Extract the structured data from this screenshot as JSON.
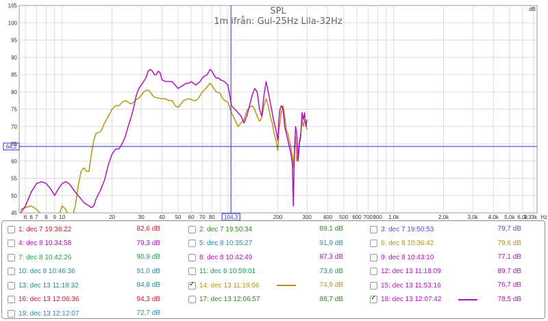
{
  "chart_data": {
    "type": "line",
    "title": "SPL",
    "subtitle": "1m ifrån: Gul-25Hz Lila-32Hz",
    "ylabel": "dB",
    "xlabel": "",
    "x_unit": "Hz",
    "xscale": "log",
    "xlim": [
      5.5,
      7330
    ],
    "ylim": [
      45,
      105
    ],
    "grid": true,
    "y_ticks": [
      45,
      50,
      55,
      60,
      65,
      70,
      75,
      80,
      85,
      90,
      95,
      100,
      105
    ],
    "x_ticks": [
      {
        "v": 6,
        "label": "6"
      },
      {
        "v": 6.5,
        "label": "6"
      },
      {
        "v": 7,
        "label": "7"
      },
      {
        "v": 8,
        "label": "8"
      },
      {
        "v": 9,
        "label": "9"
      },
      {
        "v": 10,
        "label": "10"
      },
      {
        "v": 20,
        "label": "20"
      },
      {
        "v": 30,
        "label": "30"
      },
      {
        "v": 40,
        "label": "40"
      },
      {
        "v": 50,
        "label": "50"
      },
      {
        "v": 60,
        "label": "60"
      },
      {
        "v": 70,
        "label": "70"
      },
      {
        "v": 80,
        "label": "80"
      },
      {
        "v": 200,
        "label": "200"
      },
      {
        "v": 300,
        "label": "300"
      },
      {
        "v": 400,
        "label": "400"
      },
      {
        "v": 500,
        "label": "500"
      },
      {
        "v": 600,
        "label": "600"
      },
      {
        "v": 700,
        "label": "700"
      },
      {
        "v": 800,
        "label": "800"
      },
      {
        "v": 1000,
        "label": "1,0k"
      },
      {
        "v": 2000,
        "label": "2,0k"
      },
      {
        "v": 3000,
        "label": "3,0k"
      },
      {
        "v": 4000,
        "label": "4,0k"
      },
      {
        "v": 5000,
        "label": "5,0k"
      },
      {
        "v": 6000,
        "label": "6,0k"
      },
      {
        "v": 7330,
        "label": "7,33k"
      }
    ],
    "cursor": {
      "x": 104.3,
      "x_label": "104,3",
      "y": 64.2,
      "y_label": "64,2"
    },
    "series": [
      {
        "name": "14: dec 13 11:19:06",
        "color": "#b8930f",
        "points": [
          [
            5.6,
            46
          ],
          [
            6,
            46.5
          ],
          [
            6.5,
            47
          ],
          [
            7,
            46
          ],
          [
            7.5,
            44.5
          ],
          [
            8,
            43
          ],
          [
            9,
            43
          ],
          [
            9.5,
            44
          ],
          [
            10,
            47
          ],
          [
            10.5,
            46
          ],
          [
            11,
            44
          ],
          [
            11.5,
            44
          ],
          [
            12,
            47
          ],
          [
            12.5,
            53
          ],
          [
            13,
            57
          ],
          [
            13.5,
            58
          ],
          [
            14,
            57
          ],
          [
            14.5,
            57
          ],
          [
            15,
            62
          ],
          [
            15.5,
            66
          ],
          [
            16,
            68
          ],
          [
            17,
            68.5
          ],
          [
            17.5,
            69.5
          ],
          [
            18,
            71
          ],
          [
            19,
            73
          ],
          [
            20,
            75
          ],
          [
            21,
            76
          ],
          [
            22,
            76
          ],
          [
            23,
            77
          ],
          [
            24,
            77.5
          ],
          [
            25,
            77
          ],
          [
            26,
            76.5
          ],
          [
            27,
            77
          ],
          [
            28,
            77.8
          ],
          [
            29,
            78.2
          ],
          [
            30,
            79
          ],
          [
            31,
            80
          ],
          [
            32,
            80.4
          ],
          [
            33,
            80.5
          ],
          [
            34,
            80
          ],
          [
            35,
            79
          ],
          [
            36,
            78.5
          ],
          [
            38,
            78.2
          ],
          [
            40,
            78
          ],
          [
            42,
            78
          ],
          [
            44,
            77.5
          ],
          [
            46,
            77.5
          ],
          [
            48,
            76
          ],
          [
            50,
            75.5
          ],
          [
            52,
            76.5
          ],
          [
            54,
            77.5
          ],
          [
            56,
            77.8
          ],
          [
            58,
            78
          ],
          [
            60,
            77.8
          ],
          [
            62,
            77.5
          ],
          [
            64,
            77.5
          ],
          [
            66,
            78
          ],
          [
            68,
            79
          ],
          [
            70,
            80
          ],
          [
            72,
            80.5
          ],
          [
            75,
            81.5
          ],
          [
            78,
            82.5
          ],
          [
            80,
            82
          ],
          [
            82,
            81
          ],
          [
            85,
            80
          ],
          [
            88,
            79.8
          ],
          [
            90,
            79.5
          ],
          [
            93,
            78
          ],
          [
            96,
            77.5
          ],
          [
            100,
            77
          ],
          [
            105,
            74
          ],
          [
            110,
            72
          ],
          [
            115,
            70
          ],
          [
            120,
            71
          ],
          [
            125,
            72
          ],
          [
            130,
            74.5
          ],
          [
            135,
            75.5
          ],
          [
            140,
            76
          ],
          [
            145,
            75
          ],
          [
            150,
            73
          ],
          [
            155,
            71.5
          ],
          [
            160,
            72.5
          ],
          [
            165,
            76
          ],
          [
            170,
            78
          ],
          [
            175,
            76
          ],
          [
            180,
            73
          ],
          [
            185,
            71
          ],
          [
            190,
            68
          ],
          [
            195,
            66
          ],
          [
            200,
            63
          ],
          [
            203,
            69
          ],
          [
            206,
            71
          ],
          [
            210,
            74
          ],
          [
            215,
            76
          ],
          [
            220,
            73
          ],
          [
            225,
            69
          ],
          [
            230,
            68
          ],
          [
            235,
            66
          ],
          [
            240,
            64
          ],
          [
            245,
            61
          ],
          [
            248,
            58
          ],
          [
            252,
            64
          ],
          [
            256,
            67
          ],
          [
            260,
            60
          ],
          [
            265,
            62
          ],
          [
            270,
            66
          ],
          [
            275,
            68
          ],
          [
            280,
            72
          ],
          [
            285,
            70
          ],
          [
            290,
            72
          ],
          [
            295,
            71
          ],
          [
            300,
            69
          ]
        ]
      },
      {
        "name": "18: dec 13 12:07:42",
        "color": "#b10fc0",
        "points": [
          [
            5.6,
            45
          ],
          [
            6,
            47
          ],
          [
            6.5,
            51
          ],
          [
            7,
            53.5
          ],
          [
            7.5,
            54
          ],
          [
            8,
            53.5
          ],
          [
            8.5,
            52
          ],
          [
            9,
            50
          ],
          [
            9.5,
            52
          ],
          [
            10,
            53.5
          ],
          [
            10.5,
            54
          ],
          [
            11,
            53.5
          ],
          [
            12,
            51
          ],
          [
            13,
            49
          ],
          [
            13.5,
            48
          ],
          [
            14,
            47.5
          ],
          [
            14.5,
            47
          ],
          [
            15,
            46.5
          ],
          [
            15.5,
            47
          ],
          [
            16,
            49
          ],
          [
            17,
            51.5
          ],
          [
            18,
            54.5
          ],
          [
            19,
            59
          ],
          [
            20,
            62
          ],
          [
            21,
            63.5
          ],
          [
            22,
            63.5
          ],
          [
            23,
            65
          ],
          [
            24,
            67
          ],
          [
            25,
            70
          ],
          [
            26,
            72.5
          ],
          [
            27,
            75.5
          ],
          [
            28,
            79
          ],
          [
            29,
            81
          ],
          [
            30,
            82
          ],
          [
            31,
            83
          ],
          [
            32,
            84
          ],
          [
            33,
            86
          ],
          [
            34,
            86.5
          ],
          [
            35,
            86
          ],
          [
            36,
            85
          ],
          [
            37,
            85
          ],
          [
            38,
            86
          ],
          [
            39,
            85.5
          ],
          [
            40,
            83.5
          ],
          [
            42,
            83
          ],
          [
            44,
            83
          ],
          [
            46,
            83
          ],
          [
            48,
            82
          ],
          [
            50,
            81
          ],
          [
            52,
            81.5
          ],
          [
            54,
            82
          ],
          [
            56,
            82.5
          ],
          [
            58,
            82.5
          ],
          [
            60,
            83
          ],
          [
            62,
            82.5
          ],
          [
            64,
            82
          ],
          [
            66,
            82.5
          ],
          [
            68,
            83
          ],
          [
            70,
            84
          ],
          [
            72,
            84.5
          ],
          [
            75,
            85
          ],
          [
            78,
            86.5
          ],
          [
            80,
            86
          ],
          [
            82,
            85
          ],
          [
            85,
            84
          ],
          [
            88,
            84
          ],
          [
            90,
            83.5
          ],
          [
            95,
            83
          ],
          [
            100,
            82
          ],
          [
            105,
            76
          ],
          [
            110,
            75
          ],
          [
            115,
            74
          ],
          [
            120,
            73
          ],
          [
            125,
            71
          ],
          [
            130,
            73
          ],
          [
            135,
            76
          ],
          [
            140,
            79
          ],
          [
            145,
            81
          ],
          [
            150,
            80
          ],
          [
            155,
            75
          ],
          [
            160,
            73
          ],
          [
            165,
            79
          ],
          [
            170,
            83
          ],
          [
            175,
            80
          ],
          [
            180,
            77
          ],
          [
            185,
            74
          ],
          [
            190,
            71
          ],
          [
            195,
            69
          ],
          [
            200,
            66
          ],
          [
            203,
            72
          ],
          [
            206,
            75
          ],
          [
            210,
            76
          ],
          [
            215,
            75
          ],
          [
            220,
            70
          ],
          [
            225,
            68
          ],
          [
            230,
            66
          ],
          [
            235,
            64
          ],
          [
            240,
            62
          ],
          [
            245,
            59
          ],
          [
            248,
            47
          ],
          [
            252,
            63
          ],
          [
            256,
            70
          ],
          [
            260,
            68
          ],
          [
            265,
            60
          ],
          [
            270,
            65
          ],
          [
            275,
            67
          ],
          [
            280,
            74
          ],
          [
            285,
            72
          ],
          [
            290,
            74
          ],
          [
            295,
            70
          ],
          [
            300,
            72
          ]
        ]
      }
    ]
  },
  "legend": {
    "entries": [
      {
        "label": "1: dec 7 19:38:22",
        "value": "82,6 dB",
        "color": "#d21a2a",
        "checked": false
      },
      {
        "label": "2: dec 7 19:50:34",
        "value": "89,1 dB",
        "color": "#2e8b1e",
        "checked": false
      },
      {
        "label": "3: dec 7 19:50:53",
        "value": "79,7 dB",
        "color": "#4a4fd8",
        "checked": false
      },
      {
        "label": "4: dec 8 10:34:58",
        "value": "79,3 dB",
        "color": "#b10fc0",
        "checked": false
      },
      {
        "label": "5: dec 8 10:35:27",
        "value": "91,9 dB",
        "color": "#2a8aa8",
        "checked": false
      },
      {
        "label": "6: dec 8 10:36:42",
        "value": "79,6 dB",
        "color": "#b8930f",
        "checked": false
      },
      {
        "label": "7: dec 8 10:42:26",
        "value": "90,9 dB",
        "color": "#1e9e57",
        "checked": false
      },
      {
        "label": "8: dec 8 10:42:49",
        "value": "87,3 dB",
        "color": "#b10fc0",
        "checked": false
      },
      {
        "label": "9: dec 8 10:43:10",
        "value": "77,1 dB",
        "color": "#b10fc0",
        "checked": false
      },
      {
        "label": "10: dec 8 10:46:36",
        "value": "91,0 dB",
        "color": "#2a8aa8",
        "checked": false
      },
      {
        "label": "11: dec 8 10:59:01",
        "value": "73,6 dB",
        "color": "#1e9e57",
        "checked": false
      },
      {
        "label": "12: dec 13 11:18:09",
        "value": "89,7 dB",
        "color": "#b10fc0",
        "checked": false
      },
      {
        "label": "13: dec 13 11:18:32",
        "value": "84,8 dB",
        "color": "#1f8a8a",
        "checked": false
      },
      {
        "label": "14: dec 13 11:19:06",
        "value": "74,9 dB",
        "color": "#b8930f",
        "checked": true
      },
      {
        "label": "15: dec 13 11:53:16",
        "value": "76,7 dB",
        "color": "#b10fc0",
        "checked": false
      },
      {
        "label": "16: dec 13 12:06:36",
        "value": "94,3 dB",
        "color": "#d21a2a",
        "checked": false
      },
      {
        "label": "17: dec 13 12:06:57",
        "value": "88,7 dB",
        "color": "#2e8b1e",
        "checked": false
      },
      {
        "label": "18: dec 13 12:07:42",
        "value": "78,5 dB",
        "color": "#b10fc0",
        "checked": true
      },
      {
        "label": "19: dec 13 12:12:07",
        "value": "72,7 dB",
        "color": "#2a8aa8",
        "checked": false
      }
    ]
  }
}
